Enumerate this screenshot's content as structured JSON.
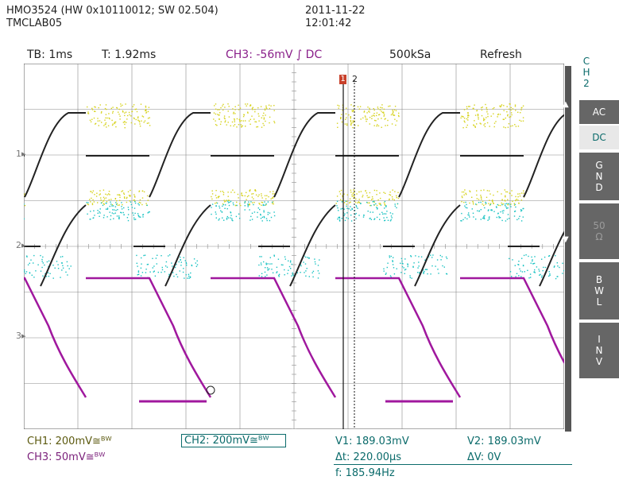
{
  "device": {
    "model_line": "HMO3524 (HW 0x10110012; SW 02.504)",
    "lab": "TMCLAB05",
    "date": "2011-11-22",
    "time": "12:01:42"
  },
  "top_bar": {
    "timebase": "TB: 1ms",
    "trigger_time": "T: 1.92ms",
    "trigger": "CH3: -56mV",
    "coupling": "DC",
    "sample_rate": "500kSa",
    "mode": "Refresh"
  },
  "side_menu": {
    "channel": [
      "C",
      "H",
      "2"
    ],
    "ac": "AC",
    "dc": "DC",
    "gnd": [
      "G",
      "N",
      "D"
    ],
    "ohm50": "50",
    "bwl": [
      "B",
      "W",
      "L"
    ],
    "inv": [
      "I",
      "N",
      "V"
    ]
  },
  "channel_markers": [
    "1",
    "2",
    "3"
  ],
  "cursor_markers": {
    "c1": "1",
    "c2": "2"
  },
  "bottom": {
    "ch1": "CH1: 200mV",
    "ch2": "CH2: 200mV",
    "ch3": "CH3: 50mV",
    "bw_symbol": "≅ᴮᵂ",
    "v1": "V1: 189.03mV",
    "v2": "V2: 189.03mV",
    "dt": "Δt: 220.00μs",
    "dv": "ΔV: 0V",
    "freq": "f: 185.94Hz"
  },
  "colors": {
    "ch1": "#d6d21c",
    "ch2": "#18c2c2",
    "ch3": "#a0189e",
    "grid": "#8a8a8a",
    "plot_bg": "#ffffff"
  }
}
